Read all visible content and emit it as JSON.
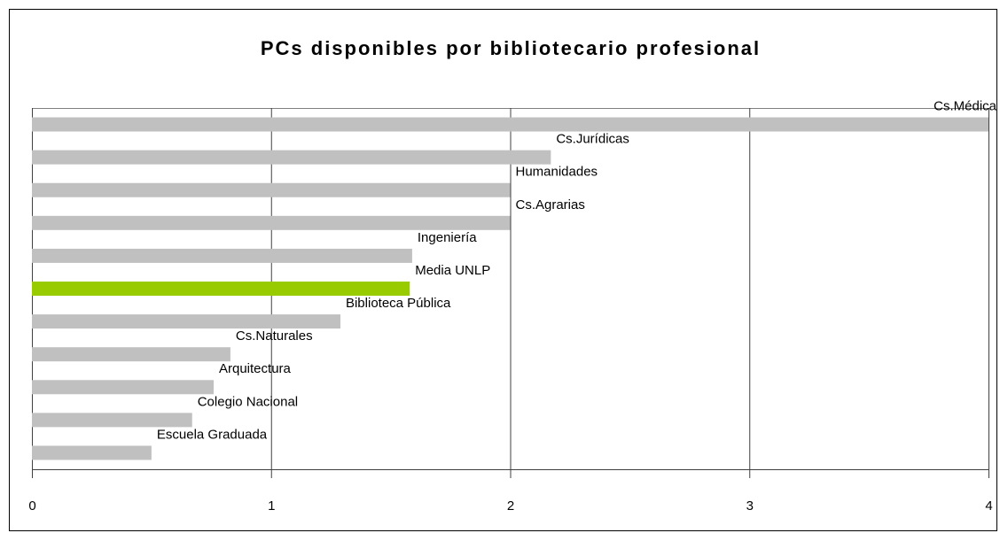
{
  "chart_data": {
    "type": "barh",
    "title": "PCs disponibles por bibliotecario profesional",
    "categories": [
      "Cs.Médica",
      "Cs.Jurídicas",
      "Humanidades",
      "Cs.Agrarias",
      "Ingeniería",
      "Media UNLP",
      "Biblioteca Pública",
      "Cs.Naturales",
      "Arquitectura",
      "Colegio Nacional",
      "Escuela Graduada"
    ],
    "values": [
      4,
      2.17,
      2.0,
      2.0,
      1.59,
      1.58,
      1.29,
      0.83,
      0.76,
      0.67,
      0.5
    ],
    "colors": [
      "#c0c0c0",
      "#c0c0c0",
      "#c0c0c0",
      "#c0c0c0",
      "#c0c0c0",
      "#99cc00",
      "#c0c0c0",
      "#c0c0c0",
      "#c0c0c0",
      "#c0c0c0",
      "#c0c0c0"
    ],
    "xlim": [
      0,
      4
    ],
    "xticks": [
      0,
      1,
      2,
      3,
      4
    ],
    "grid": true
  }
}
